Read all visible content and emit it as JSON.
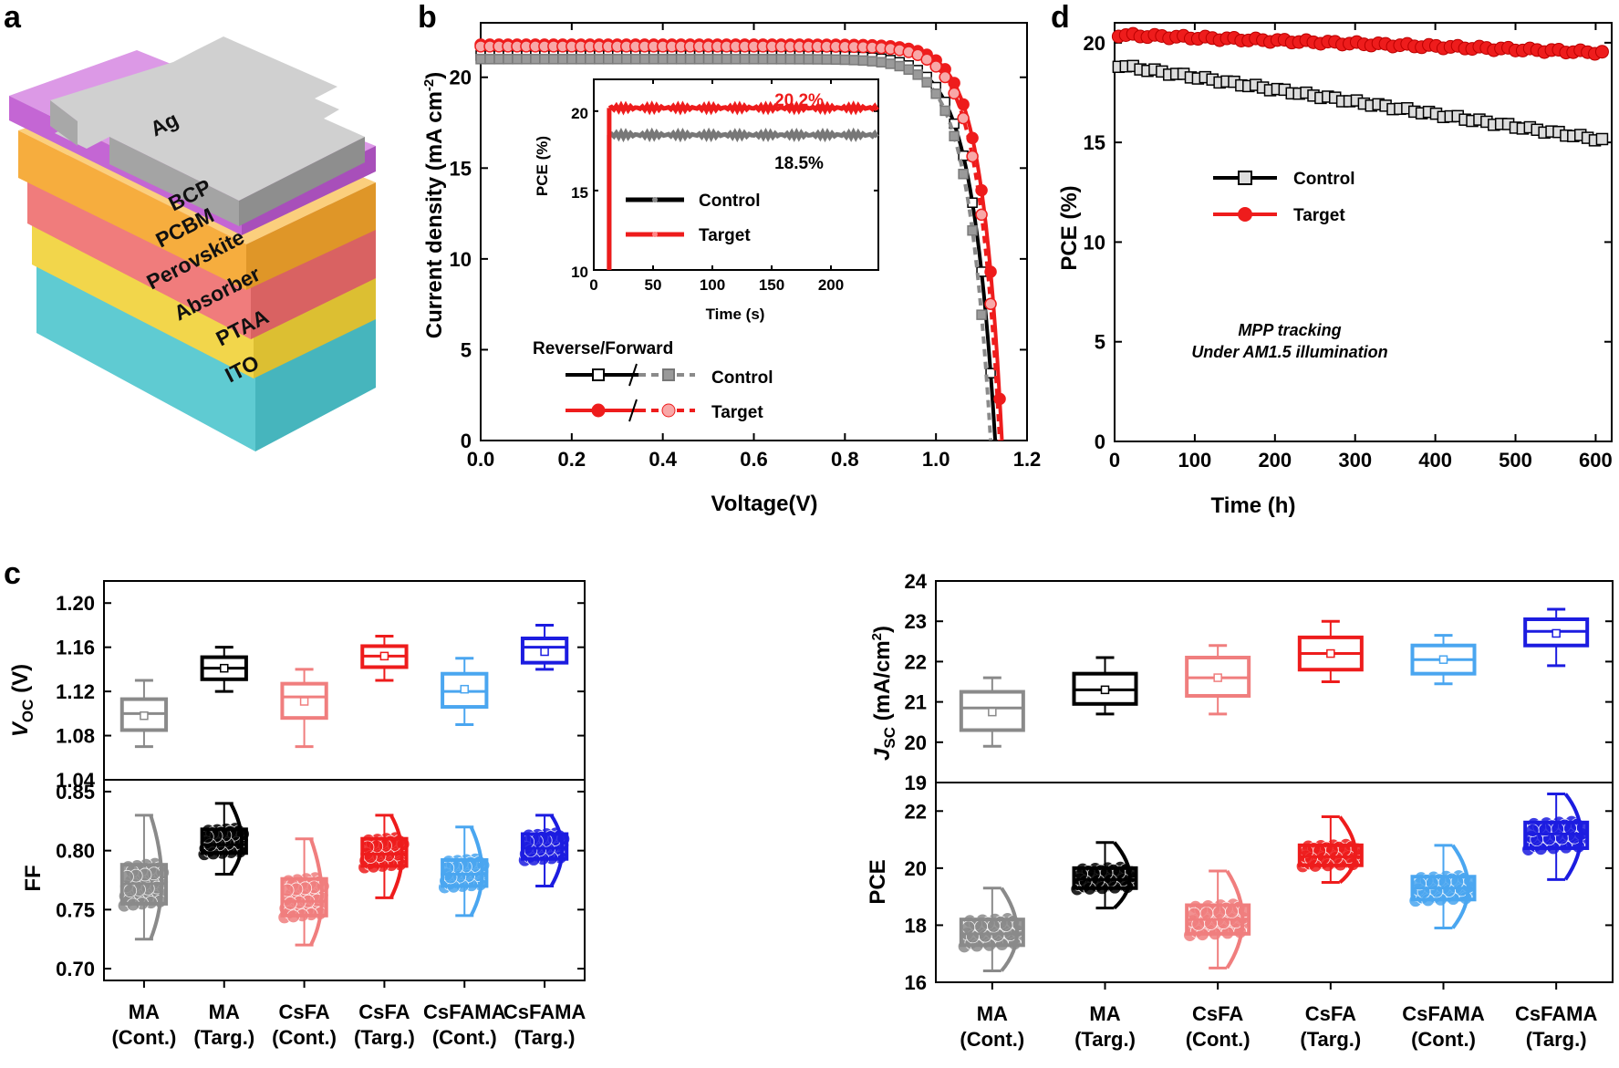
{
  "colors": {
    "black": "#000000",
    "gray": "#8a8a8a",
    "red": "#ee1c1c",
    "pink": "#f07e7e",
    "lightblue": "#4aa6f0",
    "blue": "#1c1ce0",
    "ag": "#c8c8c8",
    "bcp": "#c768d6",
    "pcbm": "#f7b042",
    "perovskite": "#f08080",
    "ptaa": "#f4dc4f",
    "ito": "#6fd6dc"
  },
  "panel_a": {
    "label": "a",
    "layers": [
      "Ag",
      "BCP",
      "PCBM",
      "Perovskite",
      "Absorber",
      "PTAA",
      "ITO"
    ]
  },
  "chart_data": [
    {
      "panel": "b",
      "type": "line",
      "xlabel": "Voltage(V)",
      "ylabel": "Current density (mA cm",
      "ylabel_sup": "-2",
      "ylabel_close": ")",
      "xlim": [
        0,
        1.2
      ],
      "ylim": [
        0,
        23
      ],
      "xticks": [
        "0.0",
        "0.2",
        "0.4",
        "0.6",
        "0.8",
        "1.0",
        "1.2"
      ],
      "yticks": [
        "0",
        "5",
        "10",
        "15",
        "20"
      ],
      "legend_title": "Reverse/Forward",
      "series": [
        {
          "name": "Control",
          "mode": "Reverse",
          "color": "black",
          "jsc": 21.2,
          "voc": 1.13,
          "n": 0.052
        },
        {
          "name": "Control",
          "mode": "Forward",
          "color": "gray",
          "jsc": 21.0,
          "voc": 1.12,
          "n": 0.05
        },
        {
          "name": "Target",
          "mode": "Reverse",
          "color": "red",
          "jsc": 21.8,
          "voc": 1.145,
          "n": 0.045
        },
        {
          "name": "Target",
          "mode": "Forward",
          "color": "red",
          "jsc": 21.7,
          "voc": 1.14,
          "n": 0.047
        }
      ],
      "inset": {
        "type": "line",
        "xlabel": "Time (s)",
        "ylabel": "PCE (%)",
        "xlim": [
          0,
          240
        ],
        "ylim": [
          10,
          22
        ],
        "xticks": [
          "0",
          "50",
          "100",
          "150",
          "200"
        ],
        "yticks": [
          "10",
          "15",
          "20"
        ],
        "series": [
          {
            "name": "Control",
            "value": 18.5,
            "color": "gray",
            "label": "18.5%"
          },
          {
            "name": "Target",
            "value": 20.2,
            "color": "red",
            "label": "20.2%"
          }
        ]
      }
    },
    {
      "panel": "d",
      "type": "scatter",
      "xlabel": "Time (h)",
      "ylabel": "PCE (%)",
      "xlim": [
        0,
        620
      ],
      "ylim": [
        0,
        21
      ],
      "xticks": [
        "0",
        "100",
        "200",
        "300",
        "400",
        "500",
        "600"
      ],
      "yticks": [
        "0",
        "5",
        "10",
        "15",
        "20"
      ],
      "annotation": [
        "MPP tracking",
        "Under AM1.5 illumination"
      ],
      "series": [
        {
          "name": "Control",
          "color": "black",
          "start": 18.9,
          "end": 15.1
        },
        {
          "name": "Target",
          "color": "red",
          "start": 20.4,
          "end": 19.5
        }
      ]
    },
    {
      "panel": "c",
      "type": "box",
      "categories": [
        [
          "MA",
          "(Cont.)"
        ],
        [
          "MA",
          "(Targ.)"
        ],
        [
          "CsFA",
          "(Cont.)"
        ],
        [
          "CsFA",
          "(Targ.)"
        ],
        [
          "CsFAMA",
          "(Cont.)"
        ],
        [
          "CsFAMA",
          "(Targ.)"
        ]
      ],
      "category_colors": [
        "gray",
        "black",
        "pink",
        "red",
        "lightblue",
        "blue"
      ],
      "voc": {
        "ylabel": "V",
        "ylabel_sub": "OC",
        "ylabel_unit": " (V)",
        "ylim": [
          1.04,
          1.22
        ],
        "yticks": [
          "1.04",
          "1.08",
          "1.12",
          "1.16",
          "1.20"
        ],
        "boxes": [
          [
            1.085,
            1.1,
            1.113,
            1.07,
            1.13,
            1.098
          ],
          [
            1.131,
            1.141,
            1.151,
            1.12,
            1.16,
            1.141
          ],
          [
            1.096,
            1.115,
            1.127,
            1.07,
            1.14,
            1.111
          ],
          [
            1.142,
            1.152,
            1.161,
            1.13,
            1.17,
            1.152
          ],
          [
            1.106,
            1.12,
            1.136,
            1.09,
            1.15,
            1.122
          ],
          [
            1.146,
            1.16,
            1.168,
            1.14,
            1.18,
            1.156
          ]
        ]
      },
      "ff": {
        "ylabel": "FF",
        "ylim": [
          0.69,
          0.86
        ],
        "yticks": [
          "0.70",
          "0.75",
          "0.80",
          "0.85"
        ],
        "boxes": [
          [
            0.755,
            0.772,
            0.788,
            0.725,
            0.83,
            0.77
          ],
          [
            0.798,
            0.805,
            0.818,
            0.78,
            0.84,
            0.807
          ],
          [
            0.745,
            0.757,
            0.776,
            0.72,
            0.81,
            0.758
          ],
          [
            0.787,
            0.797,
            0.81,
            0.76,
            0.83,
            0.798
          ],
          [
            0.77,
            0.78,
            0.792,
            0.745,
            0.82,
            0.781
          ],
          [
            0.793,
            0.802,
            0.814,
            0.77,
            0.83,
            0.803
          ]
        ]
      },
      "jsc": {
        "ylabel": "J",
        "ylabel_sub": "SC",
        "ylabel_unit": " (mA/cm",
        "ylabel_sup": "2",
        "ylabel_close": ")",
        "ylim": [
          19,
          24
        ],
        "yticks": [
          "19",
          "20",
          "21",
          "22",
          "23",
          "24"
        ],
        "boxes": [
          [
            20.3,
            20.85,
            21.25,
            19.9,
            21.6,
            20.75
          ],
          [
            20.95,
            21.3,
            21.7,
            20.7,
            22.1,
            21.3
          ],
          [
            21.15,
            21.6,
            22.1,
            20.7,
            22.4,
            21.6
          ],
          [
            21.8,
            22.2,
            22.6,
            21.5,
            23.0,
            22.2
          ],
          [
            21.7,
            22.05,
            22.4,
            21.45,
            22.65,
            22.05
          ],
          [
            22.4,
            22.75,
            23.05,
            21.9,
            23.3,
            22.7
          ]
        ]
      },
      "pce": {
        "ylabel": "PCE",
        "ylim": [
          16,
          23
        ],
        "yticks": [
          "16",
          "18",
          "20",
          "22"
        ],
        "boxes": [
          [
            17.3,
            17.7,
            18.2,
            16.4,
            19.3,
            17.7
          ],
          [
            19.3,
            19.6,
            20.0,
            18.6,
            20.9,
            19.6
          ],
          [
            17.7,
            18.2,
            18.7,
            16.5,
            19.9,
            18.2
          ],
          [
            20.1,
            20.4,
            20.8,
            19.5,
            21.8,
            20.4
          ],
          [
            18.9,
            19.3,
            19.7,
            17.9,
            20.8,
            19.3
          ],
          [
            20.7,
            21.2,
            21.6,
            19.6,
            22.6,
            21.2
          ]
        ]
      }
    }
  ],
  "labels": {
    "b": "b",
    "c": "c",
    "d": "d"
  }
}
